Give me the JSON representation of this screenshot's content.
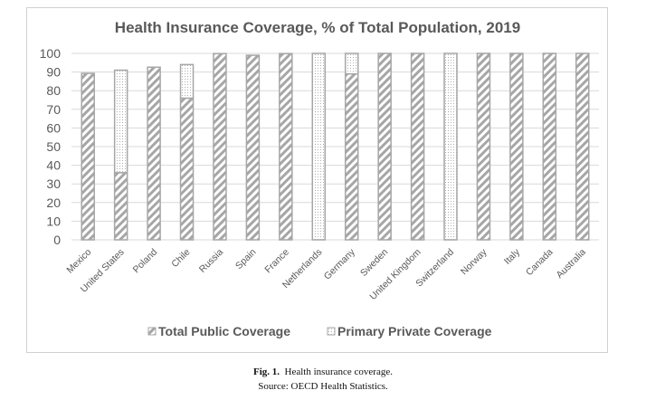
{
  "chart_data": {
    "type": "bar",
    "stacked": true,
    "title": "Health Insurance Coverage, % of Total Population, 2019",
    "xlabel": "",
    "ylabel": "",
    "ylim": [
      0,
      100
    ],
    "yticks": [
      0,
      10,
      20,
      30,
      40,
      50,
      60,
      70,
      80,
      90,
      100
    ],
    "grid": true,
    "legend_position": "bottom",
    "categories": [
      "Mexico",
      "United States",
      "Poland",
      "Chile",
      "Russia",
      "Spain",
      "France",
      "Netherlands",
      "Germany",
      "Sweden",
      "United Kingdom",
      "Switzerland",
      "Norway",
      "Italy",
      "Canada",
      "Australia"
    ],
    "series": [
      {
        "name": "Total Public Coverage",
        "pattern": "diagonal-stripes",
        "values": [
          89.3,
          36,
          92.6,
          76,
          99.9,
          99,
          99.9,
          0,
          89,
          100,
          100,
          0,
          100,
          100,
          100,
          100
        ]
      },
      {
        "name": "Primary Private Coverage",
        "pattern": "dots",
        "values": [
          0,
          55,
          0,
          18,
          0,
          0,
          0,
          100,
          11,
          0,
          0,
          100,
          0,
          0,
          0,
          0
        ]
      }
    ],
    "colors": {
      "bar": "#a6a6a6",
      "grid": "#d9d9d9",
      "text": "#595959"
    }
  },
  "caption": {
    "label": "Fig. 1.",
    "text": "Health insurance coverage.",
    "source": "Source: OECD Health Statistics."
  }
}
